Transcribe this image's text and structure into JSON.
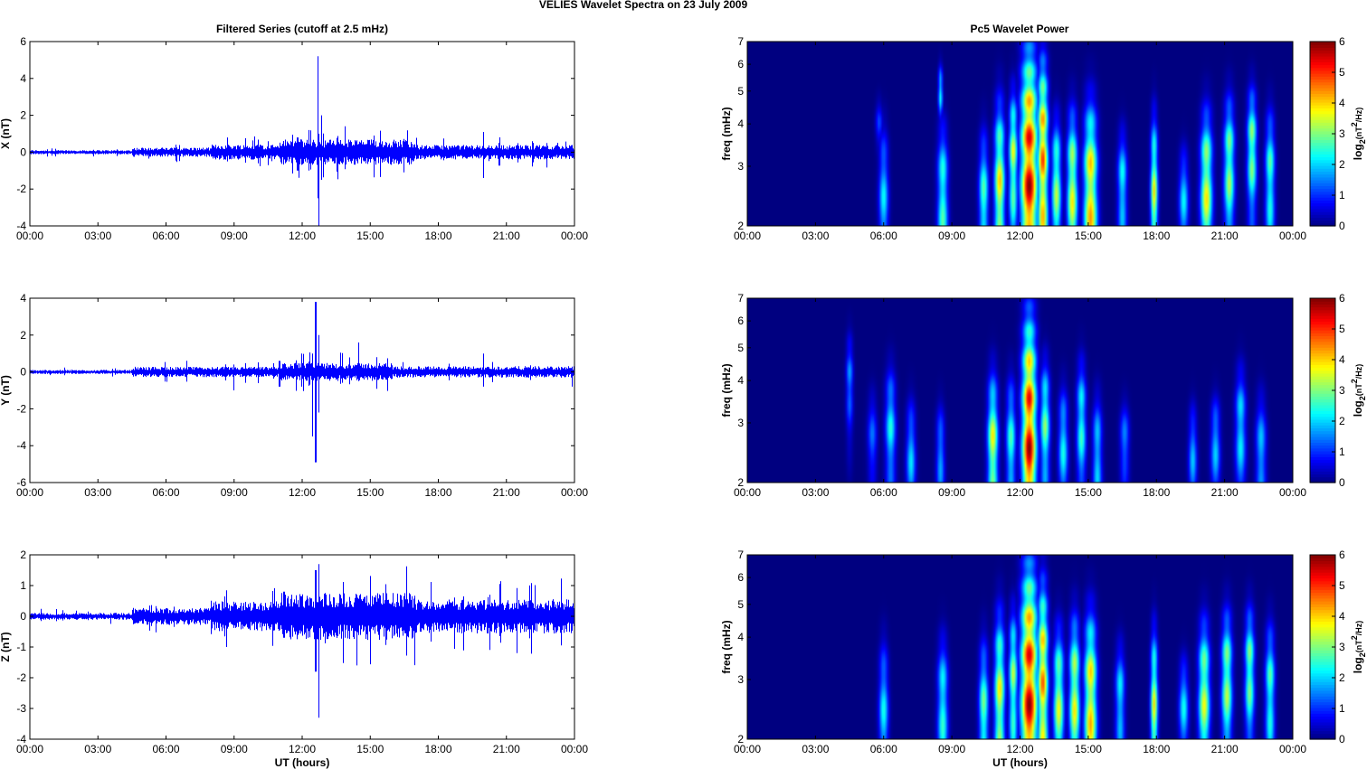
{
  "figure": {
    "suptitle": "VELIES Wavelet Spectra on 23 July      2009",
    "left_title": "Filtered Series (cutoff at 2.5 mHz)",
    "right_title": "Pc5 Wavelet Power",
    "xlabel": "UT (hours)",
    "time_ticks": [
      "00:00",
      "03:00",
      "06:00",
      "09:00",
      "12:00",
      "15:00",
      "18:00",
      "21:00",
      "00:00"
    ],
    "colors": {
      "trace": "#0000ff",
      "axes": "#000000",
      "background": "#ffffff"
    },
    "colormap": "jet"
  },
  "chart_data": [
    {
      "type": "line",
      "panel": "X",
      "ylabel": "X (nT)",
      "xlim": [
        0,
        24
      ],
      "ylim": [
        -4,
        6
      ],
      "yticks": [
        -4,
        -2,
        0,
        2,
        4,
        6
      ],
      "baseline_noise": 0.08,
      "spikes": [
        {
          "t": 12.7,
          "min": -2.5,
          "max": 5.2
        },
        {
          "t": 12.75,
          "min": -4.0,
          "max": 1.0
        },
        {
          "t": 12.85,
          "min": -1.5,
          "max": 2.0
        },
        {
          "t": 12.3,
          "min": -1.0,
          "max": 1.2
        },
        {
          "t": 11.8,
          "min": -1.0,
          "max": 0.8
        },
        {
          "t": 20.0,
          "min": -1.4,
          "max": 1.1
        },
        {
          "t": 8.7,
          "min": -0.5,
          "max": 0.8
        },
        {
          "t": 10.5,
          "min": -0.7,
          "max": 0.6
        }
      ],
      "activity": [
        {
          "start": 4.5,
          "end": 8.0,
          "amp": 0.18
        },
        {
          "start": 8.0,
          "end": 11.0,
          "amp": 0.3
        },
        {
          "start": 11.0,
          "end": 17.0,
          "amp": 0.5
        },
        {
          "start": 17.0,
          "end": 24.0,
          "amp": 0.28
        }
      ]
    },
    {
      "type": "line",
      "panel": "Y",
      "ylabel": "Y (nT)",
      "xlim": [
        0,
        24
      ],
      "ylim": [
        -6,
        4
      ],
      "yticks": [
        -6,
        -4,
        -2,
        0,
        2,
        4
      ],
      "baseline_noise": 0.08,
      "spikes": [
        {
          "t": 12.6,
          "min": -4.9,
          "max": 3.8
        },
        {
          "t": 12.75,
          "min": -2.2,
          "max": 2.0
        },
        {
          "t": 12.45,
          "min": -3.5,
          "max": 1.0
        },
        {
          "t": 14.5,
          "min": -0.5,
          "max": 1.6
        },
        {
          "t": 9.0,
          "min": -1.0,
          "max": 0.4
        },
        {
          "t": 11.0,
          "min": -0.8,
          "max": 0.6
        },
        {
          "t": 20.0,
          "min": -0.8,
          "max": 1.0
        },
        {
          "t": 23.9,
          "min": -0.8,
          "max": 0.2
        }
      ],
      "activity": [
        {
          "start": 4.5,
          "end": 11.0,
          "amp": 0.2
        },
        {
          "start": 11.0,
          "end": 16.0,
          "amp": 0.35
        },
        {
          "start": 16.0,
          "end": 24.0,
          "amp": 0.22
        }
      ]
    },
    {
      "type": "line",
      "panel": "Z",
      "ylabel": "Z (nT)",
      "xlim": [
        0,
        24
      ],
      "ylim": [
        -4,
        2
      ],
      "yticks": [
        -4,
        -3,
        -2,
        -1,
        0,
        1,
        2
      ],
      "baseline_noise": 0.08,
      "spikes": [
        {
          "t": 12.75,
          "min": -3.3,
          "max": 1.7
        },
        {
          "t": 12.6,
          "min": -1.8,
          "max": 1.5
        },
        {
          "t": 14.4,
          "min": -1.6,
          "max": 0.7
        },
        {
          "t": 8.6,
          "min": -0.5,
          "max": 0.6
        },
        {
          "t": 11.2,
          "min": -0.7,
          "max": 0.8
        }
      ],
      "activity": [
        {
          "start": 4.5,
          "end": 8.0,
          "amp": 0.2
        },
        {
          "start": 8.0,
          "end": 11.0,
          "amp": 0.35
        },
        {
          "start": 11.0,
          "end": 17.0,
          "amp": 0.55
        },
        {
          "start": 17.0,
          "end": 24.0,
          "amp": 0.4
        }
      ]
    },
    {
      "type": "heatmap",
      "panel": "X",
      "ylabel": "freq (mHz)",
      "xlim": [
        0,
        24
      ],
      "ylim": [
        2,
        7
      ],
      "yscale": "log",
      "yticks": [
        2,
        3,
        4,
        5,
        6,
        7
      ],
      "colorbar": {
        "label": "log2(nT^2/Hz)",
        "range": [
          0,
          6
        ],
        "ticks": [
          0,
          1,
          2,
          3,
          4,
          5,
          6
        ]
      },
      "columns": [
        {
          "t": 6.0,
          "peak": 2.3,
          "f0": 2.4,
          "height": 1.2,
          "width": 0.2
        },
        {
          "t": 5.8,
          "peak": 1.2,
          "f0": 4.0,
          "height": 0.6,
          "width": 0.15
        },
        {
          "t": 8.6,
          "peak": 3.0,
          "f0": 2.4,
          "height": 1.3,
          "width": 0.22
        },
        {
          "t": 8.5,
          "peak": 2.6,
          "f0": 5.0,
          "height": 0.8,
          "width": 0.1
        },
        {
          "t": 10.4,
          "peak": 3.0,
          "f0": 2.3,
          "height": 1.2,
          "width": 0.2
        },
        {
          "t": 11.1,
          "peak": 4.2,
          "f0": 2.5,
          "height": 1.8,
          "width": 0.22
        },
        {
          "t": 11.7,
          "peak": 3.8,
          "f0": 3.2,
          "height": 1.5,
          "width": 0.18
        },
        {
          "t": 12.4,
          "peak": 6.0,
          "f0": 2.6,
          "height": 3.5,
          "width": 0.35
        },
        {
          "t": 13.0,
          "peak": 5.0,
          "f0": 3.2,
          "height": 2.6,
          "width": 0.22
        },
        {
          "t": 13.6,
          "peak": 3.5,
          "f0": 2.6,
          "height": 1.3,
          "width": 0.2
        },
        {
          "t": 14.3,
          "peak": 4.0,
          "f0": 2.6,
          "height": 1.5,
          "width": 0.22
        },
        {
          "t": 15.1,
          "peak": 4.6,
          "f0": 2.5,
          "height": 1.8,
          "width": 0.28
        },
        {
          "t": 16.5,
          "peak": 2.6,
          "f0": 2.6,
          "height": 1.0,
          "width": 0.2
        },
        {
          "t": 17.9,
          "peak": 4.0,
          "f0": 2.4,
          "height": 1.5,
          "width": 0.15
        },
        {
          "t": 19.2,
          "peak": 2.3,
          "f0": 2.4,
          "height": 0.8,
          "width": 0.2
        },
        {
          "t": 20.2,
          "peak": 4.0,
          "f0": 2.6,
          "height": 1.5,
          "width": 0.25
        },
        {
          "t": 21.2,
          "peak": 3.5,
          "f0": 3.0,
          "height": 1.5,
          "width": 0.22
        },
        {
          "t": 22.2,
          "peak": 3.5,
          "f0": 3.4,
          "height": 1.4,
          "width": 0.2
        },
        {
          "t": 23.0,
          "peak": 3.0,
          "f0": 2.8,
          "height": 1.3,
          "width": 0.2
        }
      ]
    },
    {
      "type": "heatmap",
      "panel": "Y",
      "ylabel": "freq (mHz)",
      "xlim": [
        0,
        24
      ],
      "ylim": [
        2,
        7
      ],
      "yscale": "log",
      "yticks": [
        2,
        3,
        4,
        5,
        6,
        7
      ],
      "colorbar": {
        "label": "log2(nT^2/Hz)",
        "range": [
          0,
          6
        ],
        "ticks": [
          0,
          1,
          2,
          3,
          4,
          5,
          6
        ]
      },
      "columns": [
        {
          "t": 4.5,
          "peak": 1.8,
          "f0": 4.0,
          "height": 1.2,
          "width": 0.15
        },
        {
          "t": 5.5,
          "peak": 1.5,
          "f0": 2.7,
          "height": 0.8,
          "width": 0.2
        },
        {
          "t": 6.3,
          "peak": 2.5,
          "f0": 2.9,
          "height": 1.2,
          "width": 0.22
        },
        {
          "t": 7.2,
          "peak": 2.2,
          "f0": 2.4,
          "height": 0.9,
          "width": 0.2
        },
        {
          "t": 8.5,
          "peak": 2.0,
          "f0": 2.4,
          "height": 0.8,
          "width": 0.18
        },
        {
          "t": 10.8,
          "peak": 4.0,
          "f0": 2.5,
          "height": 1.4,
          "width": 0.22
        },
        {
          "t": 11.6,
          "peak": 2.8,
          "f0": 2.6,
          "height": 1.2,
          "width": 0.2
        },
        {
          "t": 12.4,
          "peak": 6.0,
          "f0": 2.5,
          "height": 3.2,
          "width": 0.3
        },
        {
          "t": 13.1,
          "peak": 3.2,
          "f0": 3.0,
          "height": 1.3,
          "width": 0.2
        },
        {
          "t": 13.9,
          "peak": 2.5,
          "f0": 2.6,
          "height": 1.0,
          "width": 0.2
        },
        {
          "t": 14.7,
          "peak": 2.8,
          "f0": 3.0,
          "height": 1.3,
          "width": 0.2
        },
        {
          "t": 15.4,
          "peak": 2.4,
          "f0": 2.4,
          "height": 1.0,
          "width": 0.2
        },
        {
          "t": 16.6,
          "peak": 1.8,
          "f0": 2.6,
          "height": 0.7,
          "width": 0.2
        },
        {
          "t": 19.6,
          "peak": 2.0,
          "f0": 2.4,
          "height": 0.8,
          "width": 0.18
        },
        {
          "t": 20.6,
          "peak": 2.2,
          "f0": 2.6,
          "height": 0.8,
          "width": 0.2
        },
        {
          "t": 21.7,
          "peak": 2.5,
          "f0": 2.9,
          "height": 1.2,
          "width": 0.22
        },
        {
          "t": 22.6,
          "peak": 2.2,
          "f0": 2.4,
          "height": 1.0,
          "width": 0.22
        }
      ]
    },
    {
      "type": "heatmap",
      "panel": "Z",
      "ylabel": "freq (mHz)",
      "xlim": [
        0,
        24
      ],
      "ylim": [
        2,
        7
      ],
      "yscale": "log",
      "yticks": [
        2,
        3,
        4,
        5,
        6,
        7
      ],
      "colorbar": {
        "label": "log2(nT^2/Hz)",
        "range": [
          0,
          6
        ],
        "ticks": [
          0,
          1,
          2,
          3,
          4,
          5,
          6
        ]
      },
      "columns": [
        {
          "t": 6.0,
          "peak": 2.4,
          "f0": 2.4,
          "height": 1.2,
          "width": 0.2
        },
        {
          "t": 8.6,
          "peak": 2.8,
          "f0": 2.5,
          "height": 1.2,
          "width": 0.22
        },
        {
          "t": 10.4,
          "peak": 3.2,
          "f0": 2.3,
          "height": 1.3,
          "width": 0.2
        },
        {
          "t": 11.1,
          "peak": 4.0,
          "f0": 2.6,
          "height": 1.8,
          "width": 0.22
        },
        {
          "t": 11.7,
          "peak": 3.5,
          "f0": 3.0,
          "height": 1.5,
          "width": 0.18
        },
        {
          "t": 12.4,
          "peak": 6.0,
          "f0": 2.5,
          "height": 3.5,
          "width": 0.35
        },
        {
          "t": 13.0,
          "peak": 4.8,
          "f0": 3.0,
          "height": 2.4,
          "width": 0.22
        },
        {
          "t": 13.7,
          "peak": 3.8,
          "f0": 2.6,
          "height": 1.4,
          "width": 0.22
        },
        {
          "t": 14.4,
          "peak": 4.0,
          "f0": 2.7,
          "height": 1.6,
          "width": 0.22
        },
        {
          "t": 15.1,
          "peak": 4.5,
          "f0": 2.6,
          "height": 1.8,
          "width": 0.26
        },
        {
          "t": 16.4,
          "peak": 2.5,
          "f0": 2.6,
          "height": 1.0,
          "width": 0.2
        },
        {
          "t": 17.9,
          "peak": 4.0,
          "f0": 2.4,
          "height": 1.5,
          "width": 0.15
        },
        {
          "t": 19.2,
          "peak": 2.4,
          "f0": 2.5,
          "height": 0.8,
          "width": 0.2
        },
        {
          "t": 20.1,
          "peak": 3.8,
          "f0": 2.7,
          "height": 1.5,
          "width": 0.24
        },
        {
          "t": 21.1,
          "peak": 3.6,
          "f0": 3.0,
          "height": 1.5,
          "width": 0.22
        },
        {
          "t": 22.1,
          "peak": 3.4,
          "f0": 3.2,
          "height": 1.4,
          "width": 0.2
        },
        {
          "t": 23.0,
          "peak": 3.0,
          "f0": 2.8,
          "height": 1.3,
          "width": 0.2
        }
      ]
    }
  ]
}
